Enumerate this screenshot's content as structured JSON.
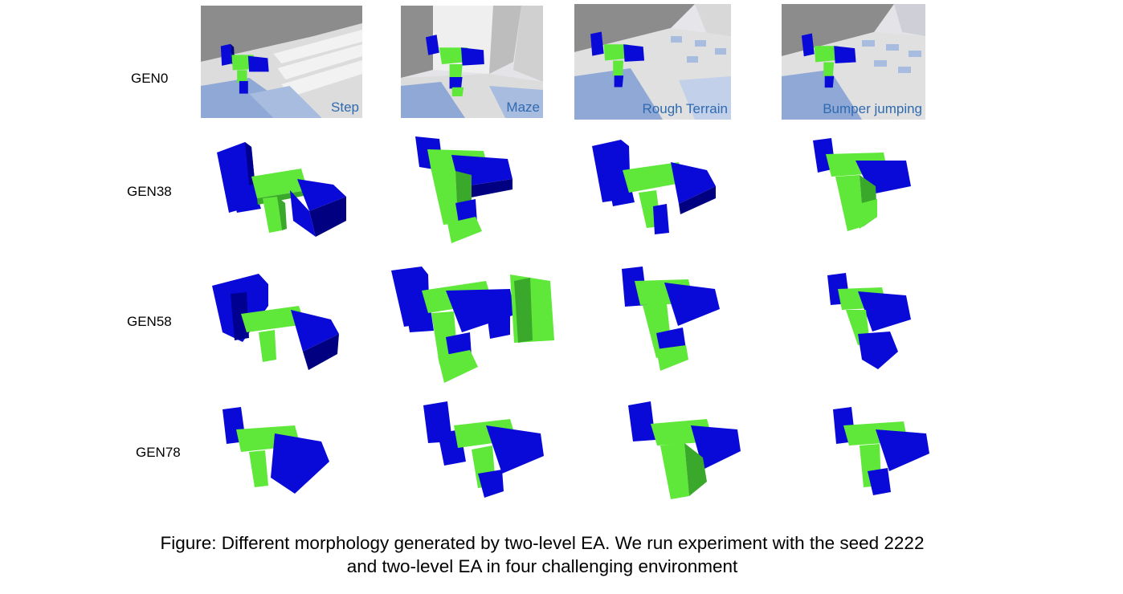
{
  "rows": [
    {
      "label": "GEN0"
    },
    {
      "label": "GEN38"
    },
    {
      "label": "GEN58"
    },
    {
      "label": "GEN78"
    }
  ],
  "environments": [
    {
      "label": "Step"
    },
    {
      "label": "Maze"
    },
    {
      "label": "Rough Terrain"
    },
    {
      "label": "Bumper jumping"
    }
  ],
  "caption": {
    "line1": "Figure: Different morphology generated by two-level EA. We run experiment with the seed 2222",
    "line2": "and two-level EA in four challenging environment"
  },
  "colors": {
    "body_blue": "#0a0ad8",
    "body_green": "#5fe83a",
    "floor_blue": "#8fa8d6",
    "env_label": "#2f6ab0"
  }
}
